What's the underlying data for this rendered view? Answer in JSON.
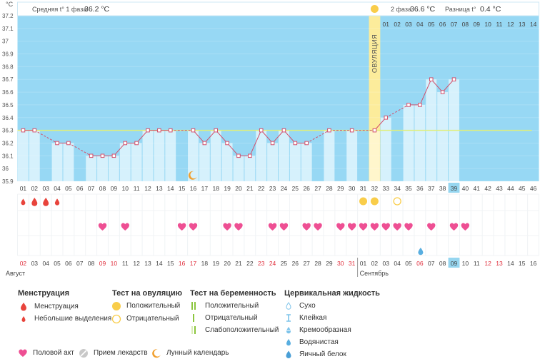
{
  "chart_data": {
    "type": "line",
    "yunit": "°C",
    "ylim": [
      35.9,
      37.2
    ],
    "yticks": [
      "37.2",
      "37.1",
      "37",
      "36.9",
      "36.8",
      "36.7",
      "36.6",
      "36.5",
      "36.4",
      "36.3",
      "36.2",
      "36.1",
      "36",
      "35.9"
    ],
    "header": {
      "phase1_label": "Средняя t° 1 фаза",
      "phase1_value": "36.2 °C",
      "phase2_label": "2 фаза",
      "phase2_value": "36.6 °C",
      "diff_label": "Разница t°",
      "diff_value": "0.4 °C"
    },
    "ovulation_label": "ОВУЛЯЦИЯ",
    "ovulation_day": 32,
    "coverline": 36.3,
    "days_total": 46,
    "temps": [
      36.3,
      36.3,
      null,
      36.2,
      36.2,
      null,
      36.1,
      36.1,
      36.1,
      36.2,
      36.2,
      36.3,
      36.3,
      36.3,
      null,
      36.3,
      36.2,
      36.3,
      36.2,
      36.1,
      36.1,
      36.3,
      36.2,
      36.3,
      36.2,
      36.2,
      null,
      36.3,
      null,
      36.3,
      null,
      36.3,
      36.4,
      null,
      36.5,
      36.5,
      36.7,
      36.6,
      36.7
    ],
    "top_day_labels": [
      "01",
      "02",
      "03",
      "04",
      "05",
      "06",
      "07",
      "08",
      "09",
      "10",
      "11",
      "12",
      "13",
      "14"
    ],
    "cycle_day_labels": [
      "01",
      "02",
      "03",
      "04",
      "05",
      "06",
      "07",
      "08",
      "09",
      "10",
      "11",
      "12",
      "13",
      "14",
      "15",
      "16",
      "17",
      "18",
      "19",
      "20",
      "21",
      "22",
      "23",
      "24",
      "25",
      "26",
      "27",
      "28",
      "29",
      "30",
      "31",
      "32",
      "33",
      "34",
      "35",
      "36",
      "37",
      "38",
      "39",
      "40",
      "41",
      "42",
      "43",
      "44",
      "45",
      "46"
    ],
    "current_day": 39,
    "date_labels": [
      "02",
      "03",
      "04",
      "05",
      "06",
      "07",
      "08",
      "09",
      "10",
      "11",
      "12",
      "13",
      "14",
      "15",
      "16",
      "17",
      "18",
      "19",
      "20",
      "21",
      "22",
      "23",
      "24",
      "25",
      "26",
      "27",
      "28",
      "29",
      "30",
      "31",
      "01",
      "02",
      "03",
      "04",
      "05",
      "06",
      "07",
      "08",
      "09",
      "10",
      "11",
      "12",
      "13",
      "14",
      "15",
      "16"
    ],
    "red_dates": [
      1,
      8,
      9,
      15,
      16,
      22,
      23,
      29,
      30,
      36,
      42,
      43
    ],
    "month1": "Август",
    "month2": "Сентябрь",
    "menstruation_days": [
      1,
      2,
      3,
      4
    ],
    "ovulation_test_positive_days": [
      31,
      32
    ],
    "ovulation_test_negative_days": [
      34
    ],
    "intercourse_days": [
      8,
      10,
      15,
      16,
      19,
      20,
      23,
      24,
      26,
      27,
      29,
      30,
      31,
      32,
      33,
      34,
      35,
      37,
      39,
      40
    ],
    "lunar_day": 16,
    "cervical_watery_day": 36,
    "colors": {
      "chart_bg": "#97d8f4",
      "bar": "#d6f1fc",
      "line": "#d2506c",
      "coverline": "#e0ef7a",
      "ovulation": "#fcec9b",
      "highlight": "#96d6f0",
      "heart": "#ee4f93",
      "drop": "#e8443c",
      "sun": "#f9cd4a"
    }
  },
  "legend": {
    "menstruation": {
      "title": "Менструация",
      "items": [
        "Менструация",
        "Небольшие выделения"
      ]
    },
    "ovulation_test": {
      "title": "Тест на овуляцию",
      "items": [
        "Положительный",
        "Отрицательный"
      ]
    },
    "pregnancy_test": {
      "title": "Тест на беременность",
      "items": [
        "Положительный",
        "Отрицательный",
        "Слабоположительный"
      ]
    },
    "cervical_fluid": {
      "title": "Цервикальная жидкость",
      "items": [
        "Сухо",
        "Клейкая",
        "Кремообразная",
        "Водянистая",
        "Яичный белок"
      ]
    },
    "bottom": [
      "Половой акт",
      "Прием лекарств",
      "Лунный календарь"
    ]
  }
}
